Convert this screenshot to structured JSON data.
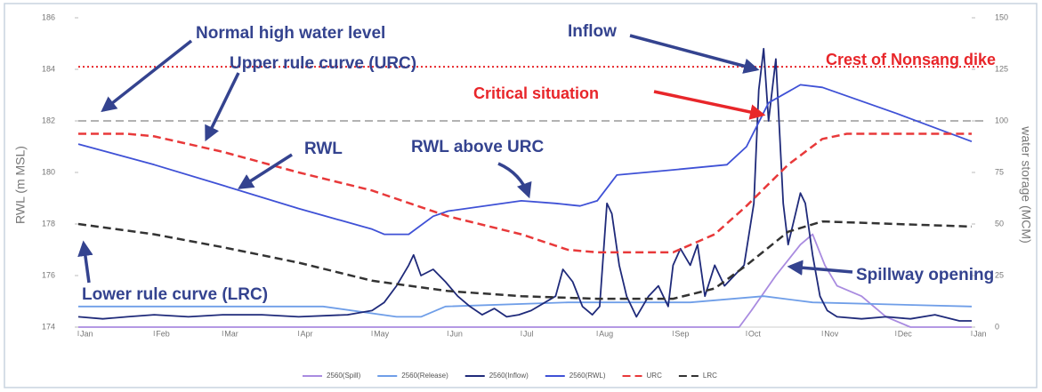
{
  "chart_data": {
    "type": "line",
    "ylabel": "RWL (m MSL)",
    "y2label": "water storage (MCM)",
    "xlim": [
      0,
      365
    ],
    "xticks": [
      {
        "value": 0,
        "label": "Jan"
      },
      {
        "value": 31,
        "label": "Feb"
      },
      {
        "value": 59,
        "label": "Mar"
      },
      {
        "value": 90,
        "label": "Apr"
      },
      {
        "value": 120,
        "label": "May"
      },
      {
        "value": 151,
        "label": "Jun"
      },
      {
        "value": 181,
        "label": "Jul"
      },
      {
        "value": 212,
        "label": "Aug"
      },
      {
        "value": 243,
        "label": "Sep"
      },
      {
        "value": 273,
        "label": "Oct"
      },
      {
        "value": 304,
        "label": "Nov"
      },
      {
        "value": 334,
        "label": "Dec"
      },
      {
        "value": 365,
        "label": "Jan"
      }
    ],
    "ylim": [
      174,
      186
    ],
    "yticks": [
      174,
      176,
      178,
      180,
      182,
      184,
      186
    ],
    "y2lim": [
      0,
      150
    ],
    "y2ticks": [
      0,
      25,
      50,
      75,
      100,
      125,
      150
    ],
    "hlines": [
      {
        "value": 182,
        "color": "#999999",
        "style": "dashed"
      },
      {
        "value": 184.1,
        "color": "#e8262a",
        "style": "dotted"
      }
    ],
    "annotations": [
      "Normal high water level",
      "Upper rule curve (URC)",
      "Inflow",
      "Crest of Nonsang dike",
      "Critical situation",
      "RWL",
      "RWL above URC",
      "Spillway opening",
      "Lower rule curve (LRC)"
    ],
    "series": [
      {
        "name": "2560(Spill)",
        "color": "#a98be0",
        "axis": "y2",
        "style": "solid",
        "x": [
          0,
          270,
          275,
          285,
          295,
          300,
          305,
          310,
          320,
          330,
          340,
          365
        ],
        "values": [
          0,
          0,
          8,
          25,
          40,
          45,
          30,
          20,
          15,
          5,
          0,
          0
        ]
      },
      {
        "name": "2560(Release)",
        "color": "#6f9ee8",
        "axis": "y2",
        "style": "solid",
        "x": [
          0,
          100,
          130,
          140,
          150,
          200,
          250,
          280,
          300,
          365
        ],
        "values": [
          10,
          10,
          5,
          5,
          10,
          12,
          12,
          15,
          12,
          10
        ]
      },
      {
        "name": "2560(Inflow)",
        "color": "#1f2a7a",
        "axis": "y2",
        "style": "solid",
        "x": [
          0,
          10,
          20,
          31,
          45,
          59,
          75,
          90,
          110,
          120,
          125,
          130,
          135,
          137,
          140,
          145,
          150,
          155,
          160,
          165,
          170,
          175,
          180,
          185,
          195,
          198,
          202,
          206,
          210,
          213,
          216,
          218,
          221,
          224,
          228,
          233,
          237,
          241,
          243,
          246,
          250,
          253,
          256,
          260,
          264,
          268,
          272,
          276,
          278,
          280,
          282,
          285,
          288,
          290,
          293,
          295,
          297,
          300,
          303,
          306,
          310,
          320,
          330,
          340,
          350,
          360,
          365
        ],
        "values": [
          5,
          4,
          5,
          6,
          5,
          6,
          6,
          5,
          6,
          8,
          12,
          20,
          30,
          35,
          25,
          28,
          22,
          15,
          10,
          6,
          9,
          5,
          6,
          8,
          15,
          28,
          22,
          10,
          6,
          10,
          60,
          55,
          30,
          15,
          5,
          15,
          20,
          10,
          30,
          38,
          30,
          40,
          15,
          30,
          20,
          25,
          30,
          60,
          115,
          135,
          100,
          130,
          60,
          40,
          55,
          65,
          60,
          35,
          15,
          8,
          5,
          4,
          5,
          4,
          6,
          3,
          3
        ]
      },
      {
        "name": "2560(RWL)",
        "color": "#3f51d6",
        "axis": "y",
        "style": "solid",
        "x": [
          0,
          31,
          59,
          90,
          120,
          125,
          135,
          145,
          151,
          181,
          195,
          205,
          212,
          220,
          243,
          265,
          273,
          282,
          295,
          304,
          334,
          365
        ],
        "values": [
          181.1,
          180.3,
          179.5,
          178.6,
          177.8,
          177.6,
          177.6,
          178.3,
          178.5,
          178.9,
          178.8,
          178.7,
          178.9,
          179.9,
          180.1,
          180.3,
          181.0,
          182.7,
          183.4,
          183.3,
          182.3,
          181.2
        ]
      },
      {
        "name": "URC",
        "color": "#e8393a",
        "axis": "y",
        "style": "dashed",
        "x": [
          0,
          20,
          31,
          59,
          90,
          120,
          151,
          181,
          200,
          212,
          243,
          260,
          273,
          290,
          304,
          314,
          365
        ],
        "values": [
          181.5,
          181.5,
          181.4,
          180.8,
          180.0,
          179.3,
          178.3,
          177.6,
          177.0,
          176.9,
          176.9,
          177.6,
          178.7,
          180.3,
          181.3,
          181.5,
          181.5
        ]
      },
      {
        "name": "LRC",
        "color": "#333333",
        "axis": "y",
        "style": "dashed",
        "x": [
          0,
          31,
          59,
          90,
          120,
          151,
          181,
          212,
          243,
          260,
          273,
          290,
          304,
          334,
          365
        ],
        "values": [
          178.0,
          177.6,
          177.1,
          176.5,
          175.8,
          175.4,
          175.2,
          175.1,
          175.1,
          175.5,
          176.4,
          177.7,
          178.1,
          178.0,
          177.9
        ]
      }
    ]
  }
}
